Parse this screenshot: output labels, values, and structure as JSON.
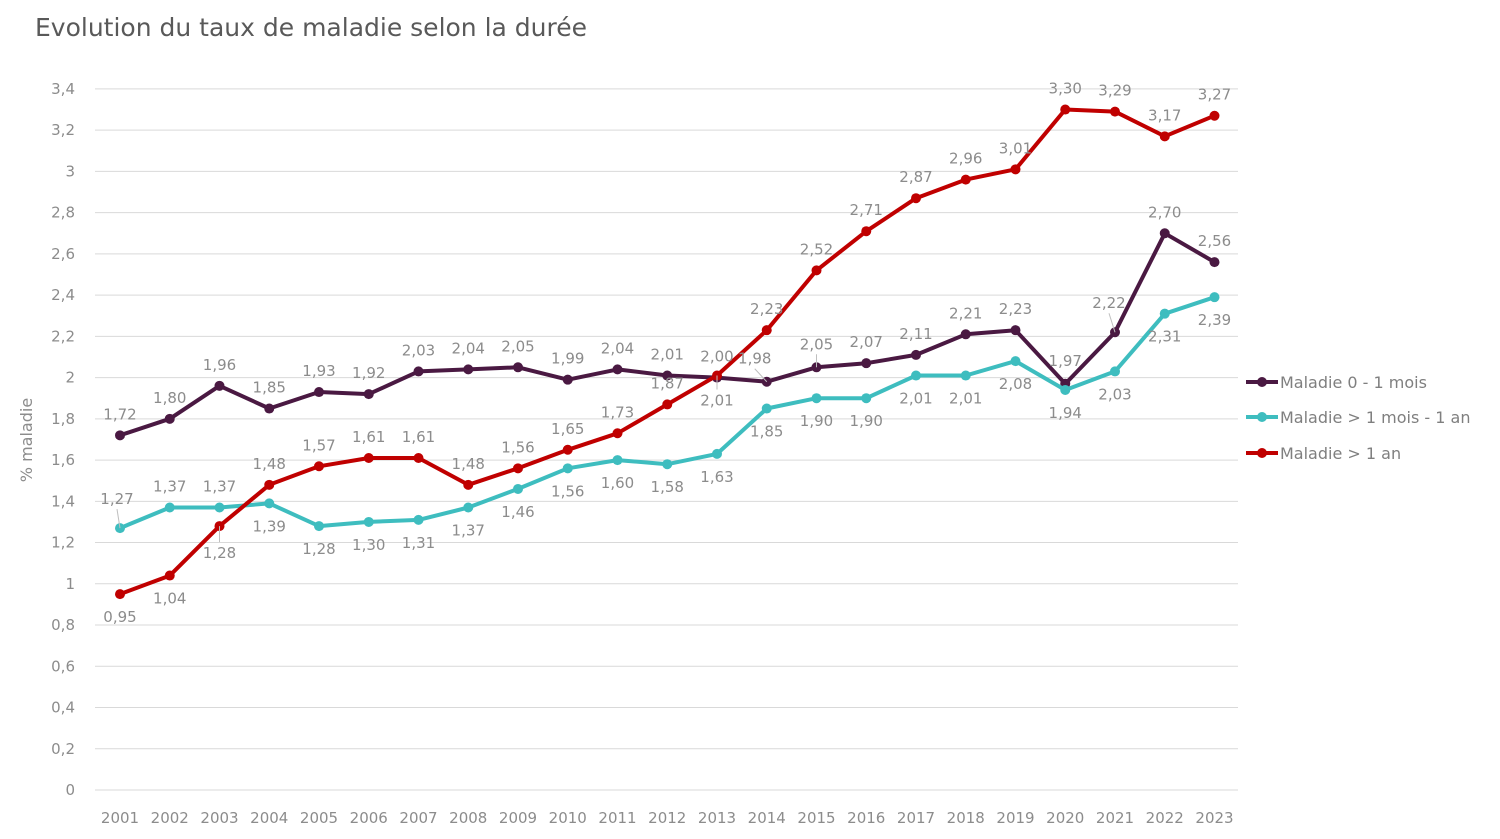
{
  "chart_data": {
    "type": "line",
    "title": "Evolution du taux de maladie selon la durée",
    "ylabel": "% maladie",
    "xlabel": "",
    "ylim": [
      0,
      3.4
    ],
    "yticks": [
      "0",
      "0,2",
      "0,4",
      "0,6",
      "0,8",
      "1",
      "1,2",
      "1,4",
      "1,6",
      "1,8",
      "2",
      "2,2",
      "2,4",
      "2,6",
      "2,8",
      "3",
      "3,2",
      "3,4"
    ],
    "grid": true,
    "legend_position": "right",
    "categories": [
      "2001",
      "2002",
      "2003",
      "2004",
      "2005",
      "2006",
      "2007",
      "2008",
      "2009",
      "2010",
      "2011",
      "2012",
      "2013",
      "2014",
      "2015",
      "2016",
      "2017",
      "2018",
      "2019",
      "2020",
      "2021",
      "2022",
      "2023"
    ],
    "series": [
      {
        "name": "Maladie 0 - 1 mois",
        "color": "#4a1942",
        "values": [
          1.72,
          1.8,
          1.96,
          1.85,
          1.93,
          1.92,
          2.03,
          2.04,
          2.05,
          1.99,
          2.04,
          2.01,
          2.0,
          1.98,
          2.05,
          2.07,
          2.11,
          2.21,
          2.23,
          1.97,
          2.22,
          2.7,
          2.56
        ],
        "labels": [
          "1,72",
          "1,80",
          "1,96",
          "1,85",
          "1,93",
          "1,92",
          "2,03",
          "2,04",
          "2,05",
          "1,99",
          "2,04",
          "2,01",
          "2,00",
          "1,98",
          "2,05",
          "2,07",
          "2,11",
          "2,21",
          "2,23",
          "1,97",
          "2,22",
          "2,70",
          "2,56"
        ]
      },
      {
        "name": "Maladie > 1 mois - 1 an",
        "color": "#3ebdbf",
        "values": [
          1.27,
          1.37,
          1.37,
          1.39,
          1.28,
          1.3,
          1.31,
          1.37,
          1.46,
          1.56,
          1.6,
          1.58,
          1.63,
          1.85,
          1.9,
          1.9,
          2.01,
          2.01,
          2.08,
          1.94,
          2.03,
          2.31,
          2.39
        ],
        "labels": [
          "1,27",
          "1,37",
          "1,37",
          "1,39",
          "1,28",
          "1,30",
          "1,31",
          "1,37",
          "1,46",
          "1,56",
          "1,60",
          "1,58",
          "1,63",
          "1,85",
          "1,90",
          "1,90",
          "2,01",
          "2,01",
          "2,08",
          "1,94",
          "2,03",
          "2,31",
          "2,39"
        ]
      },
      {
        "name": "Maladie > 1 an",
        "color": "#c00000",
        "values": [
          0.95,
          1.04,
          1.28,
          1.48,
          1.57,
          1.61,
          1.61,
          1.48,
          1.56,
          1.65,
          1.73,
          1.87,
          2.01,
          2.23,
          2.52,
          2.71,
          2.87,
          2.96,
          3.01,
          3.3,
          3.29,
          3.17,
          3.27
        ],
        "labels": [
          "0,95",
          "1,04",
          "1,28",
          "1,48",
          "1,57",
          "1,61",
          "1,61",
          "1,48",
          "1,56",
          "1,65",
          "1,73",
          "1,87",
          "2,01",
          "2,23",
          "2,52",
          "2,71",
          "2,87",
          "2,96",
          "3,01",
          "3,30",
          "3,29",
          "3,17",
          "3,27"
        ]
      }
    ]
  }
}
